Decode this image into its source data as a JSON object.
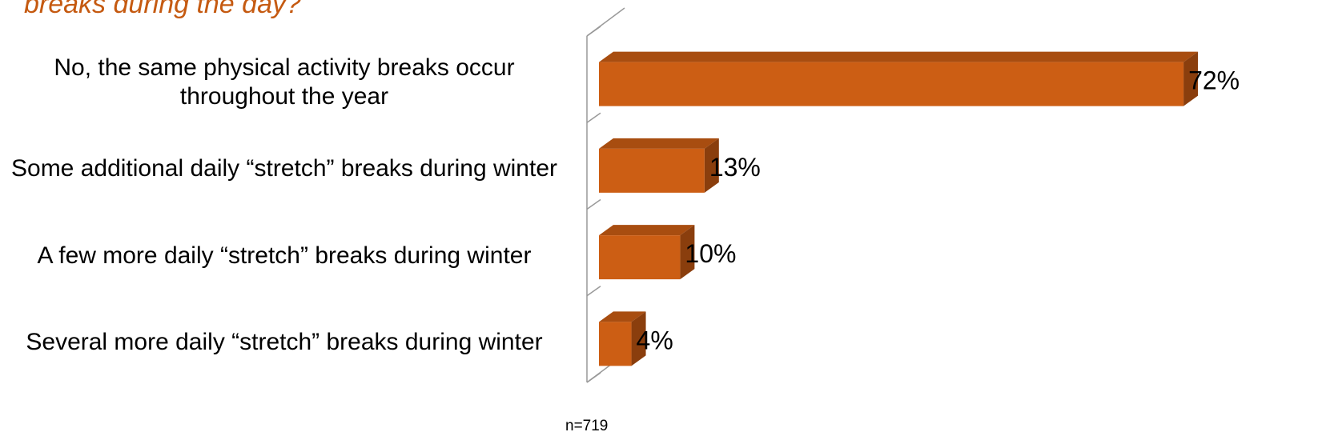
{
  "chart_data": {
    "type": "bar",
    "orientation": "horizontal",
    "title": "breaks during the day?",
    "categories": [
      "No, the same physical activity breaks occur throughout the year",
      "Some additional daily “stretch” breaks during winter",
      "A few more daily “stretch” breaks during winter",
      "Several more daily “stretch” breaks during winter"
    ],
    "values": [
      72,
      13,
      10,
      4
    ],
    "value_labels": [
      "72%",
      "13%",
      "10%",
      "4%"
    ],
    "color": "#CC5E14",
    "note": "n=719"
  }
}
